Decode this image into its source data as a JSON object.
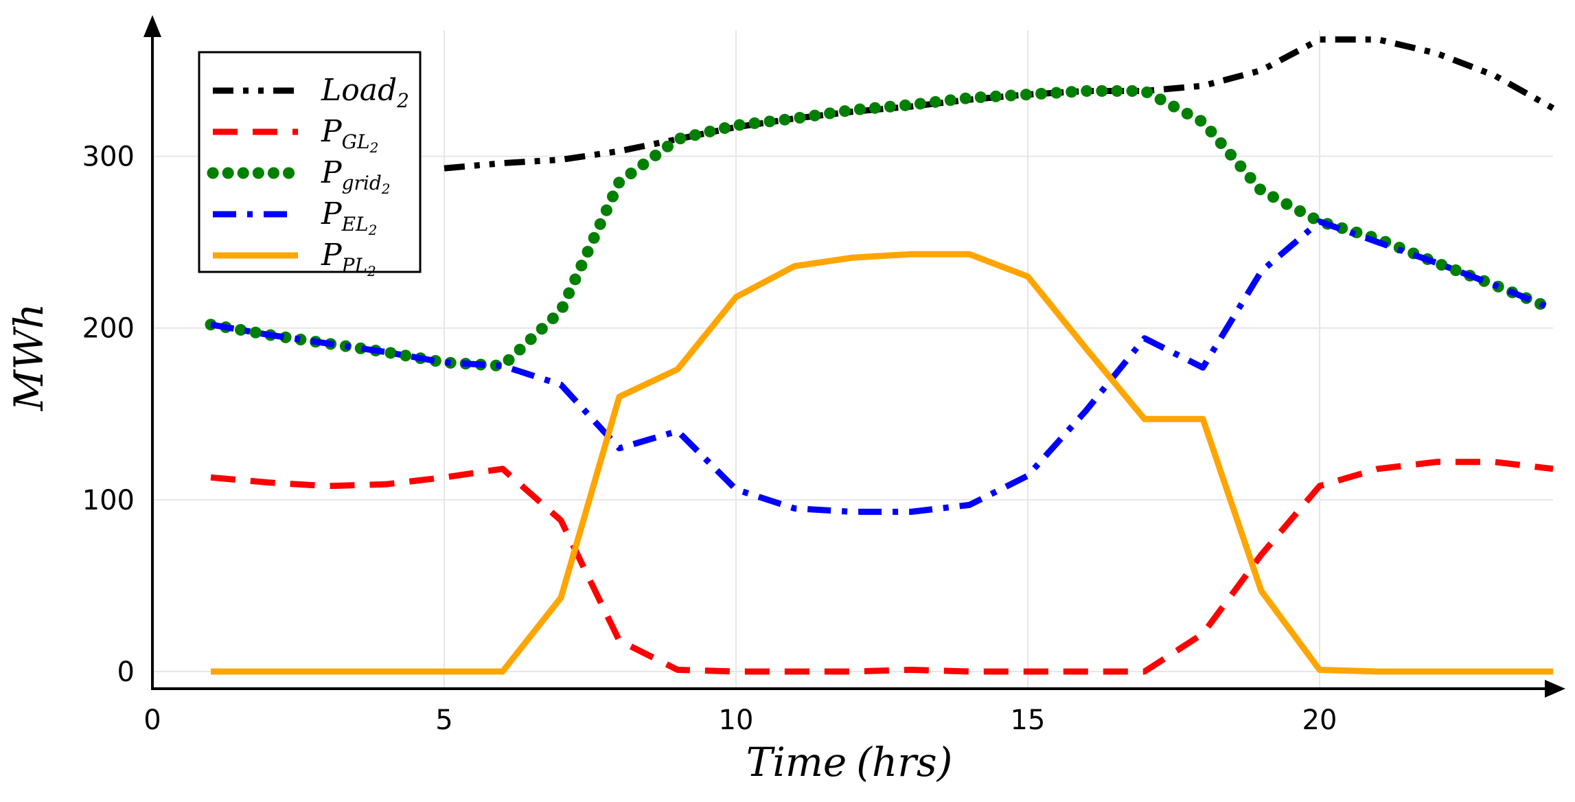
{
  "chart_data": {
    "type": "line",
    "title": "",
    "xlabel_main": "Time",
    "xlabel_unit": "(hrs)",
    "ylabel": "MWh",
    "xlim": [
      0,
      24
    ],
    "ylim": [
      -10,
      375
    ],
    "x_ticks": [
      0,
      5,
      10,
      15,
      20
    ],
    "y_ticks": [
      0,
      100,
      200,
      300
    ],
    "grid": true,
    "legend_position": "top-left",
    "x": [
      1,
      2,
      3,
      4,
      5,
      6,
      7,
      8,
      9,
      10,
      11,
      12,
      13,
      14,
      15,
      16,
      17,
      18,
      19,
      20,
      21,
      22,
      23,
      24
    ],
    "series": [
      {
        "name": "Load_2",
        "legend_base": "Load",
        "legend_sub": "2",
        "legend_subsub": "",
        "color": "#000000",
        "style": "dashdotdot",
        "values": [
          null,
          null,
          null,
          null,
          293,
          296,
          298,
          303,
          310,
          317,
          322,
          326,
          329,
          333,
          336,
          338,
          338,
          341,
          350,
          368,
          368,
          360,
          347,
          328
        ]
      },
      {
        "name": "P_GL2",
        "legend_base": "P",
        "legend_sub": "GL",
        "legend_subsub": "2",
        "color": "#ff0000",
        "style": "dash",
        "values": [
          113,
          110,
          108,
          109,
          113,
          118,
          88,
          18,
          1,
          0,
          0,
          0,
          1,
          0,
          0,
          0,
          0,
          22,
          68,
          108,
          118,
          122,
          122,
          118
        ]
      },
      {
        "name": "P_grid2",
        "legend_base": "P",
        "legend_sub": "grid",
        "legend_subsub": "2",
        "color": "#008000",
        "style": "dot",
        "values": [
          202,
          196,
          191,
          186,
          180,
          178,
          210,
          285,
          310,
          318,
          322,
          327,
          330,
          334,
          336,
          338,
          338,
          320,
          280,
          262,
          252,
          238,
          225,
          211
        ]
      },
      {
        "name": "P_EL2",
        "legend_base": "P",
        "legend_sub": "EL",
        "legend_subsub": "2",
        "color": "#0000ff",
        "style": "dashdot",
        "values": [
          202,
          196,
          191,
          186,
          180,
          178,
          167,
          130,
          140,
          106,
          95,
          93,
          93,
          97,
          114,
          152,
          194,
          177,
          233,
          262,
          250,
          238,
          225,
          211
        ]
      },
      {
        "name": "P_PL2",
        "legend_base": "P",
        "legend_sub": "PL",
        "legend_subsub": "2",
        "color": "#ffa500",
        "style": "solid",
        "values": [
          0,
          0,
          0,
          0,
          0,
          0,
          43,
          160,
          176,
          218,
          236,
          241,
          243,
          243,
          230,
          188,
          147,
          147,
          47,
          1,
          0,
          0,
          0,
          0
        ]
      }
    ]
  }
}
